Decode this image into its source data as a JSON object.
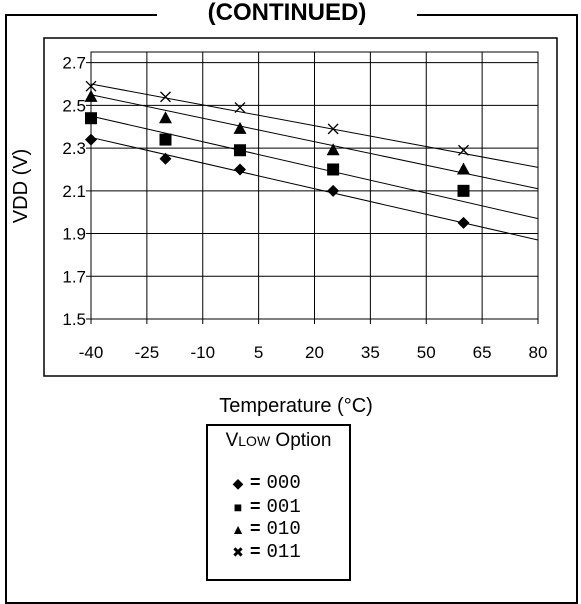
{
  "title_fragment": "(CONTINUED)",
  "chart_data": {
    "type": "line",
    "xlabel": "Temperature (°C)",
    "ylabel": "VDD (V)",
    "x_ticks": [
      -40,
      -25,
      -10,
      5,
      20,
      35,
      50,
      65,
      80
    ],
    "y_ticks": [
      1.5,
      1.7,
      1.9,
      2.1,
      2.3,
      2.5,
      2.7
    ],
    "xlim": [
      -40,
      80
    ],
    "ylim": [
      1.5,
      2.75
    ],
    "grid": true,
    "legend_title": "VLOW Option",
    "series": [
      {
        "name": "000",
        "marker": "diamond",
        "x": [
          -40,
          -20,
          0,
          25,
          60
        ],
        "y": [
          2.34,
          2.25,
          2.2,
          2.1,
          1.95
        ],
        "curve_x": [
          -40,
          80
        ],
        "curve_y": [
          2.35,
          1.87
        ]
      },
      {
        "name": "001",
        "marker": "square",
        "x": [
          -40,
          -20,
          0,
          25,
          60
        ],
        "y": [
          2.44,
          2.34,
          2.29,
          2.2,
          2.1
        ],
        "curve_x": [
          -40,
          80
        ],
        "curve_y": [
          2.45,
          1.97
        ]
      },
      {
        "name": "010",
        "marker": "triangle",
        "x": [
          -40,
          -20,
          0,
          25,
          60
        ],
        "y": [
          2.54,
          2.44,
          2.39,
          2.29,
          2.2
        ],
        "curve_x": [
          -40,
          80
        ],
        "curve_y": [
          2.55,
          2.11
        ]
      },
      {
        "name": "011",
        "marker": "x",
        "x": [
          -40,
          -20,
          0,
          25,
          60
        ],
        "y": [
          2.59,
          2.54,
          2.49,
          2.39,
          2.29
        ],
        "curve_x": [
          -40,
          80
        ],
        "curve_y": [
          2.6,
          2.21
        ]
      }
    ]
  },
  "legend": {
    "title_prefix": "V",
    "title_sub": "LOW",
    "title_suffix": " Option",
    "items": [
      {
        "symbol": "◆",
        "equals": "=",
        "code": "000"
      },
      {
        "symbol": "■",
        "equals": "=",
        "code": "001"
      },
      {
        "symbol": "▲",
        "equals": "=",
        "code": "010"
      },
      {
        "symbol": "✖",
        "equals": "=",
        "code": "011"
      }
    ]
  }
}
